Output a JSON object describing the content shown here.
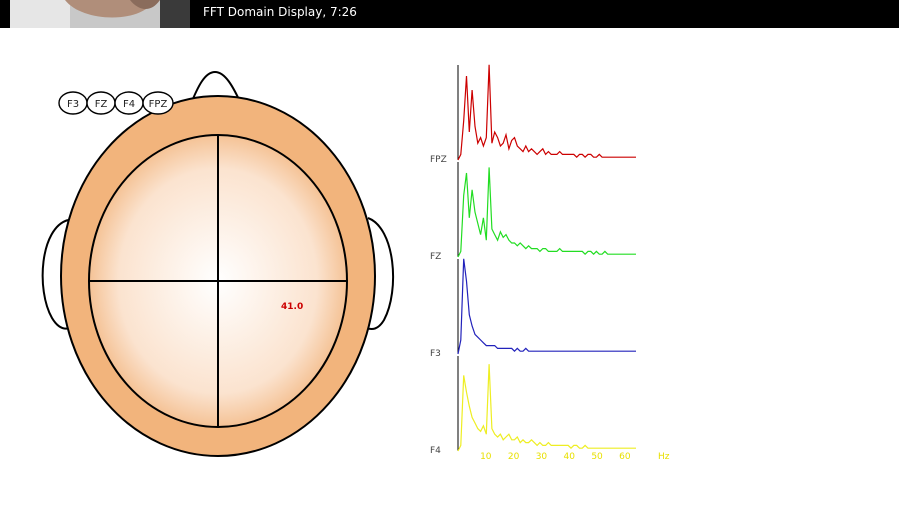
{
  "titlebar": {
    "title": "FFT Domain Display, 7:26",
    "thumbnail": "face-thumbnail"
  },
  "head_map": {
    "electrodes": [
      "F3",
      "FZ",
      "F4",
      "FPZ"
    ],
    "value": "41.0",
    "colors": {
      "skin": "#f2b47c",
      "center": "#ffffff",
      "outline": "#000000",
      "value": "#cc0000"
    }
  },
  "chart_data": {
    "type": "line",
    "xlabel": "Hz",
    "x_ticks": [
      "10",
      "20",
      "30",
      "40",
      "50",
      "60"
    ],
    "xlim": [
      0,
      64
    ],
    "series": [
      {
        "name": "FPZ",
        "color": "#cc0000",
        "values": [
          0,
          2,
          14,
          30,
          10,
          25,
          12,
          6,
          8,
          5,
          8,
          34,
          6,
          10,
          8,
          5,
          6,
          9,
          4,
          7,
          8,
          5,
          4,
          3,
          5,
          3,
          4,
          3,
          2,
          3,
          4,
          2,
          3,
          2,
          2,
          2,
          3,
          2,
          2,
          2,
          2,
          2,
          1,
          2,
          2,
          1,
          2,
          2,
          1,
          1,
          2,
          1,
          1,
          1,
          1,
          1,
          1,
          1,
          1,
          1,
          1,
          1,
          1,
          1
        ]
      },
      {
        "name": "FZ",
        "color": "#22dd22",
        "values": [
          0,
          2,
          22,
          30,
          14,
          24,
          16,
          12,
          8,
          14,
          6,
          32,
          10,
          8,
          6,
          9,
          7,
          8,
          6,
          5,
          5,
          4,
          5,
          4,
          3,
          4,
          3,
          3,
          3,
          2,
          3,
          3,
          2,
          2,
          2,
          2,
          3,
          2,
          2,
          2,
          2,
          2,
          2,
          2,
          2,
          1,
          2,
          2,
          1,
          2,
          1,
          1,
          2,
          1,
          1,
          1,
          1,
          1,
          1,
          1,
          1,
          1,
          1,
          1
        ]
      },
      {
        "name": "F3",
        "color": "#2222bb",
        "values": [
          0,
          5,
          34,
          26,
          14,
          10,
          7,
          6,
          5,
          4,
          3,
          3,
          3,
          3,
          2,
          2,
          2,
          2,
          2,
          2,
          1,
          2,
          1,
          1,
          2,
          1,
          1,
          1,
          1,
          1,
          1,
          1,
          1,
          1,
          1,
          1,
          1,
          1,
          1,
          1,
          1,
          1,
          1,
          1,
          1,
          1,
          1,
          1,
          1,
          1,
          1,
          1,
          1,
          1,
          1,
          1,
          1,
          1,
          1,
          1,
          1,
          1,
          1,
          1
        ]
      },
      {
        "name": "F4",
        "color": "#eeee22",
        "values": [
          0,
          2,
          27,
          21,
          16,
          12,
          10,
          8,
          7,
          9,
          6,
          31,
          8,
          6,
          5,
          6,
          4,
          5,
          6,
          4,
          4,
          5,
          3,
          4,
          3,
          3,
          4,
          3,
          2,
          3,
          2,
          2,
          3,
          2,
          2,
          2,
          2,
          2,
          2,
          2,
          1,
          2,
          2,
          1,
          1,
          2,
          1,
          1,
          1,
          1,
          1,
          1,
          1,
          1,
          1,
          1,
          1,
          1,
          1,
          1,
          1,
          1,
          1,
          1
        ]
      }
    ]
  }
}
